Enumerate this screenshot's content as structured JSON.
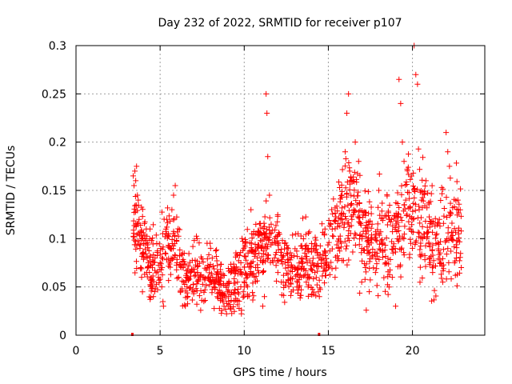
{
  "chart_data": {
    "type": "scatter",
    "title": "Day 232 of 2022, SRMTID for receiver p107",
    "xlabel": "GPS time / hours",
    "ylabel": "SRMTID / TECUs",
    "xlim": [
      0,
      24.3
    ],
    "ylim": [
      0,
      0.3
    ],
    "xticks": [
      0,
      5,
      10,
      15,
      20
    ],
    "yticks": [
      0,
      0.05,
      0.1,
      0.15,
      0.2,
      0.25,
      0.3
    ],
    "xtick_labels": [
      "0",
      "5",
      "10",
      "15",
      "20"
    ],
    "ytick_labels": [
      "0",
      "0.05",
      "0.1",
      "0.15",
      "0.2",
      "0.25",
      "0.3"
    ],
    "grid": true,
    "marker": "+",
    "color": "#ff0000",
    "series": [
      {
        "name": "SRMTID",
        "x_start": 3.4,
        "x_end": 22.9,
        "note": "dense scatter; representative points below",
        "points": [
          [
            3.4,
            0.165
          ],
          [
            3.45,
            0.155
          ],
          [
            3.5,
            0.17
          ],
          [
            3.55,
            0.16
          ],
          [
            3.6,
            0.175
          ],
          [
            3.65,
            0.145
          ],
          [
            3.7,
            0.14
          ],
          [
            3.75,
            0.12
          ],
          [
            3.8,
            0.09
          ],
          [
            3.85,
            0.07
          ],
          [
            3.9,
            0.06
          ],
          [
            3.95,
            0.045
          ],
          [
            4.0,
            0.085
          ],
          [
            4.1,
            0.1
          ],
          [
            4.2,
            0.065
          ],
          [
            4.3,
            0.075
          ],
          [
            4.4,
            0.11
          ],
          [
            4.5,
            0.055
          ],
          [
            4.6,
            0.04
          ],
          [
            4.7,
            0.08
          ],
          [
            4.8,
            0.095
          ],
          [
            4.9,
            0.06
          ],
          [
            5.0,
            0.075
          ],
          [
            5.1,
            0.05
          ],
          [
            5.2,
            0.03
          ],
          [
            5.3,
            0.085
          ],
          [
            5.4,
            0.12
          ],
          [
            5.5,
            0.105
          ],
          [
            5.6,
            0.09
          ],
          [
            5.7,
            0.13
          ],
          [
            5.8,
            0.145
          ],
          [
            5.9,
            0.155
          ],
          [
            6.0,
            0.075
          ],
          [
            6.1,
            0.06
          ],
          [
            6.2,
            0.045
          ],
          [
            6.3,
            0.07
          ],
          [
            6.4,
            0.055
          ],
          [
            6.5,
            0.03
          ],
          [
            6.6,
            0.05
          ],
          [
            6.8,
            0.065
          ],
          [
            7.0,
            0.045
          ],
          [
            7.2,
            0.1
          ],
          [
            7.4,
            0.06
          ],
          [
            7.6,
            0.035
          ],
          [
            7.8,
            0.07
          ],
          [
            8.0,
            0.09
          ],
          [
            8.2,
            0.055
          ],
          [
            8.4,
            0.04
          ],
          [
            8.6,
            0.06
          ],
          [
            8.8,
            0.03
          ],
          [
            9.0,
            0.045
          ],
          [
            9.2,
            0.065
          ],
          [
            9.4,
            0.035
          ],
          [
            9.6,
            0.055
          ],
          [
            9.8,
            0.075
          ],
          [
            10.0,
            0.05
          ],
          [
            10.2,
            0.04
          ],
          [
            10.4,
            0.13
          ],
          [
            10.6,
            0.06
          ],
          [
            10.8,
            0.07
          ],
          [
            11.0,
            0.09
          ],
          [
            11.1,
            0.03
          ],
          [
            11.2,
            0.04
          ],
          [
            11.3,
            0.25
          ],
          [
            11.35,
            0.23
          ],
          [
            11.4,
            0.185
          ],
          [
            11.5,
            0.145
          ],
          [
            11.6,
            0.115
          ],
          [
            11.8,
            0.08
          ],
          [
            12.0,
            0.065
          ],
          [
            12.2,
            0.055
          ],
          [
            12.4,
            0.095
          ],
          [
            12.6,
            0.075
          ],
          [
            12.8,
            0.045
          ],
          [
            13.0,
            0.07
          ],
          [
            13.2,
            0.105
          ],
          [
            13.4,
            0.06
          ],
          [
            13.6,
            0.085
          ],
          [
            13.8,
            0.05
          ],
          [
            14.0,
            0.095
          ],
          [
            14.2,
            0.065
          ],
          [
            14.4,
            0.045
          ],
          [
            14.6,
            0.08
          ],
          [
            14.8,
            0.11
          ],
          [
            15.0,
            0.07
          ],
          [
            15.2,
            0.13
          ],
          [
            15.4,
            0.06
          ],
          [
            15.6,
            0.09
          ],
          [
            15.8,
            0.145
          ],
          [
            16.0,
            0.19
          ],
          [
            16.1,
            0.23
          ],
          [
            16.2,
            0.25
          ],
          [
            16.3,
            0.16
          ],
          [
            16.4,
            0.12
          ],
          [
            16.6,
            0.2
          ],
          [
            16.8,
            0.18
          ],
          [
            17.0,
            0.1
          ],
          [
            17.2,
            0.07
          ],
          [
            17.4,
            0.085
          ],
          [
            17.6,
            0.115
          ],
          [
            17.8,
            0.065
          ],
          [
            18.0,
            0.15
          ],
          [
            18.2,
            0.095
          ],
          [
            18.4,
            0.075
          ],
          [
            18.6,
            0.12
          ],
          [
            18.8,
            0.06
          ],
          [
            19.0,
            0.03
          ],
          [
            19.1,
            0.1
          ],
          [
            19.2,
            0.265
          ],
          [
            19.3,
            0.24
          ],
          [
            19.4,
            0.2
          ],
          [
            19.5,
            0.18
          ],
          [
            19.6,
            0.14
          ],
          [
            19.8,
            0.11
          ],
          [
            20.0,
            0.09
          ],
          [
            20.1,
            0.3
          ],
          [
            20.2,
            0.27
          ],
          [
            20.3,
            0.26
          ],
          [
            20.4,
            0.13
          ],
          [
            20.6,
            0.1
          ],
          [
            20.8,
            0.16
          ],
          [
            21.0,
            0.08
          ],
          [
            21.2,
            0.065
          ],
          [
            21.4,
            0.095
          ],
          [
            21.6,
            0.12
          ],
          [
            21.8,
            0.055
          ],
          [
            22.0,
            0.21
          ],
          [
            22.1,
            0.19
          ],
          [
            22.2,
            0.175
          ],
          [
            22.3,
            0.1
          ],
          [
            22.5,
            0.075
          ],
          [
            22.7,
            0.14
          ],
          [
            22.9,
            0.07
          ]
        ]
      }
    ],
    "gap_markers": [
      [
        3.35,
        0
      ],
      [
        14.45,
        0
      ]
    ]
  }
}
